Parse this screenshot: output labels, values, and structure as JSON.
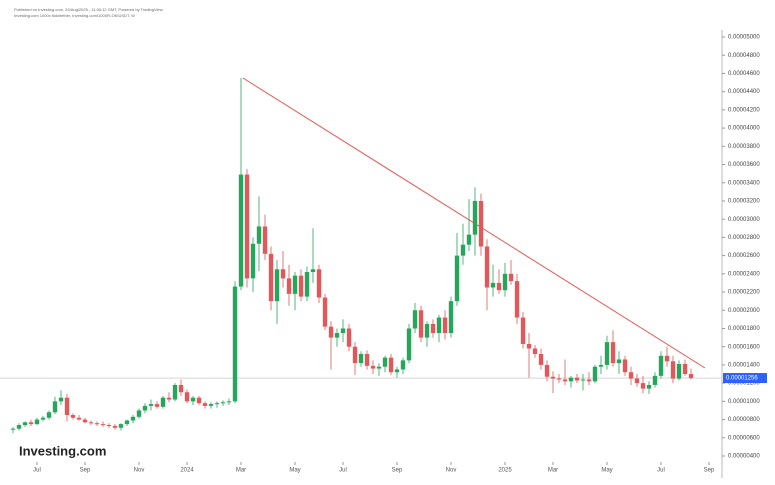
{
  "chart_data": {
    "type": "candlestick",
    "header": [
      "Published on Investing.com, 29/Aug/2025 - 11:00:12 GMT, Powered by TradingView.",
      "Investing.com 1000x floki/tether, Investing.com/1000FLOKIUSDT, W"
    ],
    "logo": "Investing.com",
    "up_color": "#26a65b",
    "down_color": "#e0585b",
    "categories": [
      null,
      null,
      null,
      null,
      "Jul",
      null,
      null,
      null,
      null,
      null,
      null,
      null,
      "Sep",
      null,
      null,
      null,
      null,
      null,
      null,
      null,
      null,
      "Nov",
      null,
      null,
      null,
      null,
      null,
      null,
      null,
      "2024",
      null,
      null,
      null,
      null,
      null,
      null,
      null,
      null,
      "Mar",
      null,
      null,
      null,
      null,
      null,
      null,
      null,
      null,
      "May",
      null,
      null,
      null,
      null,
      null,
      null,
      null,
      "Jul",
      null,
      null,
      null,
      null,
      null,
      null,
      null,
      null,
      "Sep",
      null,
      null,
      null,
      null,
      null,
      null,
      null,
      null,
      "Nov",
      null,
      null,
      null,
      null,
      null,
      null,
      null,
      null,
      "2025",
      null,
      null,
      null,
      null,
      null,
      null,
      null,
      "Mar",
      null,
      null,
      null,
      null,
      null,
      null,
      null,
      null,
      "May",
      null,
      null,
      null,
      null,
      null,
      null,
      null,
      null,
      "Jul",
      null,
      null,
      null,
      null,
      null,
      null,
      null,
      "Sep"
    ],
    "ohlc": [
      [
        6.9e-06,
        7.2e-06,
        6.5e-06,
        7e-06
      ],
      [
        7e-06,
        7.6e-06,
        6.8e-06,
        7.4e-06
      ],
      [
        7.4e-06,
        7.8e-06,
        7.2e-06,
        7.7e-06
      ],
      [
        7.7e-06,
        8e-06,
        7.3e-06,
        7.5e-06
      ],
      [
        7.5e-06,
        8.2e-06,
        7.4e-06,
        8e-06
      ],
      [
        8e-06,
        8.4e-06,
        7.8e-06,
        8.2e-06
      ],
      [
        8.2e-06,
        9e-06,
        8e-06,
        8.8e-06
      ],
      [
        8.8e-06,
        1.05e-05,
        8.6e-06,
        1e-05
      ],
      [
        1e-05,
        1.12e-05,
        9.6e-06,
        1.04e-05
      ],
      [
        1.04e-05,
        1.08e-05,
        7.8e-06,
        8.5e-06
      ],
      [
        8.5e-06,
        8.7e-06,
        8e-06,
        8.2e-06
      ],
      [
        8.2e-06,
        8.5e-06,
        7.9e-06,
        8e-06
      ],
      [
        8e-06,
        8.2e-06,
        7.6e-06,
        7.7e-06
      ],
      [
        7.7e-06,
        7.9e-06,
        7.4e-06,
        7.6e-06
      ],
      [
        7.6e-06,
        7.8e-06,
        7.3e-06,
        7.5e-06
      ],
      [
        7.5e-06,
        7.8e-06,
        7.2e-06,
        7.4e-06
      ],
      [
        7.4e-06,
        7.6e-06,
        7.1e-06,
        7.3e-06
      ],
      [
        7.3e-06,
        7.5e-06,
        6.9e-06,
        7.1e-06
      ],
      [
        7.1e-06,
        7.6e-06,
        6.8e-06,
        7.5e-06
      ],
      [
        7.5e-06,
        8e-06,
        7.3e-06,
        7.9e-06
      ],
      [
        7.9e-06,
        8.5e-06,
        7.6e-06,
        8.3e-06
      ],
      [
        8.3e-06,
        9.2e-06,
        8.1e-06,
        9e-06
      ],
      [
        9e-06,
        9.8e-06,
        8.7e-06,
        9.5e-06
      ],
      [
        9.5e-06,
        1.02e-05,
        9e-06,
        9.7e-06
      ],
      [
        9.7e-06,
        1e-05,
        9.2e-06,
        9.4e-06
      ],
      [
        9.4e-06,
        1.06e-05,
        9.2e-06,
        1.04e-05
      ],
      [
        1.04e-05,
        1.1e-05,
        9.9e-06,
        1.02e-05
      ],
      [
        1.02e-05,
        1.2e-05,
        1e-05,
        1.18e-05
      ],
      [
        1.18e-05,
        1.24e-05,
        1.06e-05,
        1.1e-05
      ],
      [
        1.1e-05,
        1.13e-05,
        9.8e-06,
        1e-05
      ],
      [
        1e-05,
        1.06e-05,
        9.6e-06,
        1.04e-05
      ],
      [
        1.04e-05,
        1.06e-05,
        9.6e-06,
        9.8e-06
      ],
      [
        9.8e-06,
        1e-05,
        9.2e-06,
        9.5e-06
      ],
      [
        9.5e-06,
        9.9e-06,
        9.2e-06,
        9.7e-06
      ],
      [
        9.7e-06,
        1e-05,
        9.3e-06,
        9.8e-06
      ],
      [
        9.8e-06,
        1.01e-05,
        9.5e-06,
        9.9e-06
      ],
      [
        9.9e-06,
        1.03e-05,
        9.6e-06,
        1e-05
      ],
      [
        1e-05,
        2.32e-05,
        9.8e-06,
        2.26e-05
      ],
      [
        2.26e-05,
        4.55e-05,
        2.22e-05,
        3.49e-05
      ],
      [
        3.49e-05,
        3.55e-05,
        2.25e-05,
        2.35e-05
      ],
      [
        2.35e-05,
        2.8e-05,
        2.2e-05,
        2.73e-05
      ],
      [
        2.73e-05,
        3.25e-05,
        2.43e-05,
        2.92e-05
      ],
      [
        2.92e-05,
        3.05e-05,
        2.55e-05,
        2.62e-05
      ],
      [
        2.62e-05,
        2.7e-05,
        2e-05,
        2.1e-05
      ],
      [
        2.1e-05,
        2.55e-05,
        1.85e-05,
        2.45e-05
      ],
      [
        2.45e-05,
        2.65e-05,
        2.25e-05,
        2.35e-05
      ],
      [
        2.35e-05,
        2.5e-05,
        2.05e-05,
        2.18e-05
      ],
      [
        2.18e-05,
        2.42e-05,
        2e-05,
        2.38e-05
      ],
      [
        2.38e-05,
        2.45e-05,
        2.1e-05,
        2.15e-05
      ],
      [
        2.15e-05,
        2.48e-05,
        2.1e-05,
        2.42e-05
      ],
      [
        2.42e-05,
        2.9e-05,
        2.3e-05,
        2.45e-05
      ],
      [
        2.45e-05,
        2.5e-05,
        2.08e-05,
        2.14e-05
      ],
      [
        2.14e-05,
        2.18e-05,
        1.78e-05,
        1.82e-05
      ],
      [
        1.82e-05,
        1.88e-05,
        1.35e-05,
        1.7e-05
      ],
      [
        1.7e-05,
        1.8e-05,
        1.6e-05,
        1.75e-05
      ],
      [
        1.75e-05,
        1.9e-05,
        1.65e-05,
        1.8e-05
      ],
      [
        1.8e-05,
        1.85e-05,
        1.55e-05,
        1.6e-05
      ],
      [
        1.6e-05,
        1.65e-05,
        1.29e-05,
        1.42e-05
      ],
      [
        1.42e-05,
        1.55e-05,
        1.38e-05,
        1.52e-05
      ],
      [
        1.52e-05,
        1.56e-05,
        1.35e-05,
        1.39e-05
      ],
      [
        1.39e-05,
        1.45e-05,
        1.3e-05,
        1.36e-05
      ],
      [
        1.36e-05,
        1.42e-05,
        1.28e-05,
        1.38e-05
      ],
      [
        1.38e-05,
        1.5e-05,
        1.32e-05,
        1.48e-05
      ],
      [
        1.48e-05,
        1.52e-05,
        1.29e-05,
        1.32e-05
      ],
      [
        1.32e-05,
        1.38e-05,
        1.26e-05,
        1.35e-05
      ],
      [
        1.35e-05,
        1.48e-05,
        1.3e-05,
        1.45e-05
      ],
      [
        1.45e-05,
        1.85e-05,
        1.42e-05,
        1.8e-05
      ],
      [
        1.8e-05,
        2.08e-05,
        1.75e-05,
        2e-05
      ],
      [
        2e-05,
        2.05e-05,
        1.65e-05,
        1.7e-05
      ],
      [
        1.7e-05,
        1.88e-05,
        1.6e-05,
        1.85e-05
      ],
      [
        1.85e-05,
        1.9e-05,
        1.7e-05,
        1.75e-05
      ],
      [
        1.75e-05,
        1.95e-05,
        1.65e-05,
        1.92e-05
      ],
      [
        1.92e-05,
        2e-05,
        1.68e-05,
        1.75e-05
      ],
      [
        1.75e-05,
        2.15e-05,
        1.7e-05,
        2.1e-05
      ],
      [
        2.1e-05,
        2.85e-05,
        2.05e-05,
        2.6e-05
      ],
      [
        2.6e-05,
        2.95e-05,
        2.5e-05,
        2.72e-05
      ],
      [
        2.72e-05,
        3.22e-05,
        2.65e-05,
        2.83e-05
      ],
      [
        2.83e-05,
        3.35e-05,
        2.6e-05,
        3.2e-05
      ],
      [
        3.2e-05,
        3.28e-05,
        2.6e-05,
        2.7e-05
      ],
      [
        2.7e-05,
        2.78e-05,
        2e-05,
        2.25e-05
      ],
      [
        2.25e-05,
        2.5e-05,
        2.15e-05,
        2.3e-05
      ],
      [
        2.3e-05,
        2.45e-05,
        2.18e-05,
        2.22e-05
      ],
      [
        2.22e-05,
        2.52e-05,
        2.15e-05,
        2.4e-05
      ],
      [
        2.4e-05,
        2.55e-05,
        2.28e-05,
        2.32e-05
      ],
      [
        2.32e-05,
        2.4e-05,
        1.85e-05,
        1.92e-05
      ],
      [
        1.92e-05,
        1.98e-05,
        1.58e-05,
        1.63e-05
      ],
      [
        1.63e-05,
        1.75e-05,
        1.26e-05,
        1.58e-05
      ],
      [
        1.58e-05,
        1.62e-05,
        1.48e-05,
        1.52e-05
      ],
      [
        1.52e-05,
        1.58e-05,
        1.35e-05,
        1.4e-05
      ],
      [
        1.4e-05,
        1.45e-05,
        1.22e-05,
        1.27e-05
      ],
      [
        1.27e-05,
        1.33e-05,
        1.09e-05,
        1.25e-05
      ],
      [
        1.25e-05,
        1.3e-05,
        1.2e-05,
        1.24e-05
      ],
      [
        1.24e-05,
        1.46e-05,
        1.18e-05,
        1.22e-05
      ],
      [
        1.22e-05,
        1.28e-05,
        1.15e-05,
        1.26e-05
      ],
      [
        1.26e-05,
        1.3e-05,
        1.2e-05,
        1.23e-05
      ],
      [
        1.23e-05,
        1.3e-05,
        1.12e-05,
        1.24e-05
      ],
      [
        1.24e-05,
        1.32e-05,
        1.18e-05,
        1.22e-05
      ],
      [
        1.22e-05,
        1.4e-05,
        1.2e-05,
        1.38e-05
      ],
      [
        1.38e-05,
        1.5e-05,
        1.3e-05,
        1.4e-05
      ],
      [
        1.4e-05,
        1.72e-05,
        1.35e-05,
        1.65e-05
      ],
      [
        1.65e-05,
        1.78e-05,
        1.38e-05,
        1.42e-05
      ],
      [
        1.42e-05,
        1.55e-05,
        1.3e-05,
        1.46e-05
      ],
      [
        1.46e-05,
        1.5e-05,
        1.28e-05,
        1.32e-05
      ],
      [
        1.32e-05,
        1.38e-05,
        1.18e-05,
        1.25e-05
      ],
      [
        1.25e-05,
        1.3e-05,
        1.16e-05,
        1.2e-05
      ],
      [
        1.2e-05,
        1.28e-05,
        1.09e-05,
        1.14e-05
      ],
      [
        1.14e-05,
        1.22e-05,
        1.08e-05,
        1.18e-05
      ],
      [
        1.18e-05,
        1.32e-05,
        1.15e-05,
        1.28e-05
      ],
      [
        1.28e-05,
        1.55e-05,
        1.25e-05,
        1.5e-05
      ],
      [
        1.5e-05,
        1.6e-05,
        1.38e-05,
        1.44e-05
      ],
      [
        1.44e-05,
        1.5e-05,
        1.2e-05,
        1.25e-05
      ],
      [
        1.25e-05,
        1.45e-05,
        1.23e-05,
        1.41e-05
      ],
      [
        1.41e-05,
        1.46e-05,
        1.28e-05,
        1.3e-05
      ],
      [
        1.3e-05,
        1.36e-05,
        1.24e-05,
        1.256e-05
      ],
      null,
      null,
      null
    ],
    "price_line": {
      "value": 1.256e-05,
      "label": "0.00001256",
      "color": "#2962ff"
    },
    "ylim": [
      4e-06,
      5e-05
    ],
    "yticks": [
      {
        "value": 4e-06,
        "label": "0.00000400"
      },
      {
        "value": 6e-06,
        "label": "0.00000600"
      },
      {
        "value": 8e-06,
        "label": "0.00000800"
      },
      {
        "value": 1e-05,
        "label": "0.00001000"
      },
      {
        "value": 1.2e-05,
        "label": "0.00001200"
      },
      {
        "value": 1.4e-05,
        "label": "0.00001400"
      },
      {
        "value": 1.6e-05,
        "label": "0.00001600"
      },
      {
        "value": 1.8e-05,
        "label": "0.00001800"
      },
      {
        "value": 2e-05,
        "label": "0.00002000"
      },
      {
        "value": 2.2e-05,
        "label": "0.00002200"
      },
      {
        "value": 2.4e-05,
        "label": "0.00002400"
      },
      {
        "value": 2.6e-05,
        "label": "0.00002600"
      },
      {
        "value": 2.8e-05,
        "label": "0.00002800"
      },
      {
        "value": 3e-05,
        "label": "0.00003000"
      },
      {
        "value": 3.2e-05,
        "label": "0.00003200"
      },
      {
        "value": 3.4e-05,
        "label": "0.00003400"
      },
      {
        "value": 3.6e-05,
        "label": "0.00003600"
      },
      {
        "value": 3.8e-05,
        "label": "0.00003800"
      },
      {
        "value": 4e-05,
        "label": "0.00004000"
      },
      {
        "value": 4.2e-05,
        "label": "0.00004200"
      },
      {
        "value": 4.4e-05,
        "label": "0.00004400"
      },
      {
        "value": 4.6e-05,
        "label": "0.00004600"
      },
      {
        "value": 4.8e-05,
        "label": "0.00004800"
      },
      {
        "value": 5e-05,
        "label": "0.00005000"
      }
    ],
    "grid": false
  }
}
